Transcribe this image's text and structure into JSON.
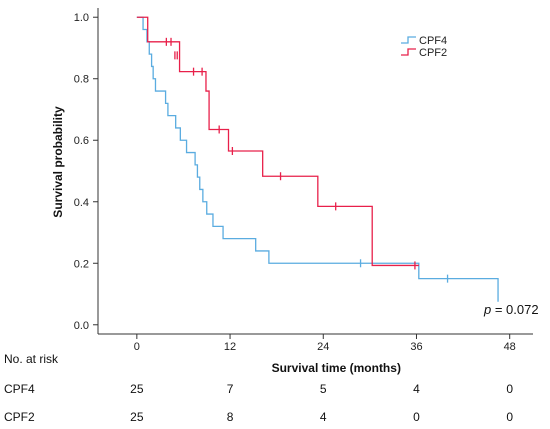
{
  "chart_data": {
    "type": "line",
    "subtype": "kaplan-meier",
    "title": "",
    "xlabel": "Survival time (months)",
    "ylabel": "Survival probability",
    "xlim": [
      -5,
      51
    ],
    "ylim": [
      -0.03,
      1.03
    ],
    "x_ticks": [
      0,
      12,
      24,
      36,
      48
    ],
    "y_ticks": [
      0.0,
      0.2,
      0.4,
      0.6,
      0.8,
      1.0
    ],
    "x_tick_labels": [
      "0",
      "12",
      "24",
      "36",
      "48"
    ],
    "y_tick_labels": [
      "0.0",
      "0.2",
      "0.4",
      "0.6",
      "0.8",
      "1.0"
    ],
    "grid": false,
    "legend": {
      "position": "top-right",
      "entries": [
        {
          "name": "CPF4",
          "color": "#5aace0"
        },
        {
          "name": "CPF2",
          "color": "#e8204a"
        }
      ]
    },
    "annotation": {
      "italic_part": "p",
      "rest": " = 0.072"
    },
    "series": [
      {
        "name": "CPF4",
        "color": "#5aace0",
        "steps": [
          [
            0,
            1.0
          ],
          [
            0.8,
            0.96
          ],
          [
            1.3,
            0.92
          ],
          [
            1.6,
            0.88
          ],
          [
            1.9,
            0.84
          ],
          [
            2.1,
            0.8
          ],
          [
            2.4,
            0.76
          ],
          [
            3.7,
            0.72
          ],
          [
            4.0,
            0.68
          ],
          [
            5.0,
            0.64
          ],
          [
            5.6,
            0.6
          ],
          [
            6.4,
            0.56
          ],
          [
            7.5,
            0.52
          ],
          [
            7.8,
            0.48
          ],
          [
            8.1,
            0.44
          ],
          [
            8.5,
            0.4
          ],
          [
            9.0,
            0.36
          ],
          [
            9.8,
            0.32
          ],
          [
            11.1,
            0.28
          ],
          [
            15.3,
            0.24
          ],
          [
            17.0,
            0.2
          ],
          [
            36.3,
            0.15
          ],
          [
            46.5,
            0.075
          ]
        ],
        "end_x": 46.5,
        "censored": [
          [
            28.8,
            0.2
          ],
          [
            40.0,
            0.15
          ]
        ]
      },
      {
        "name": "CPF2",
        "color": "#e8204a",
        "steps": [
          [
            0,
            1.0
          ],
          [
            1.4,
            0.92
          ],
          [
            5.5,
            0.823
          ],
          [
            8.9,
            0.76
          ],
          [
            9.3,
            0.635
          ],
          [
            11.8,
            0.565
          ],
          [
            16.2,
            0.483
          ],
          [
            23.3,
            0.385
          ],
          [
            30.3,
            0.193
          ]
        ],
        "end_x": 36.3,
        "censored": [
          [
            3.8,
            0.92
          ],
          [
            4.4,
            0.92
          ],
          [
            4.9,
            0.876
          ],
          [
            5.2,
            0.876
          ],
          [
            7.3,
            0.823
          ],
          [
            8.4,
            0.823
          ],
          [
            10.6,
            0.635
          ],
          [
            12.3,
            0.565
          ],
          [
            18.5,
            0.483
          ],
          [
            25.6,
            0.385
          ],
          [
            35.8,
            0.193
          ]
        ]
      }
    ]
  },
  "risk_table": {
    "title": "No. at risk",
    "rows": [
      {
        "label": "CPF4",
        "values": [
          "25",
          "7",
          "5",
          "4",
          "0"
        ]
      },
      {
        "label": "CPF2",
        "values": [
          "25",
          "8",
          "4",
          "0",
          "0"
        ]
      }
    ]
  }
}
